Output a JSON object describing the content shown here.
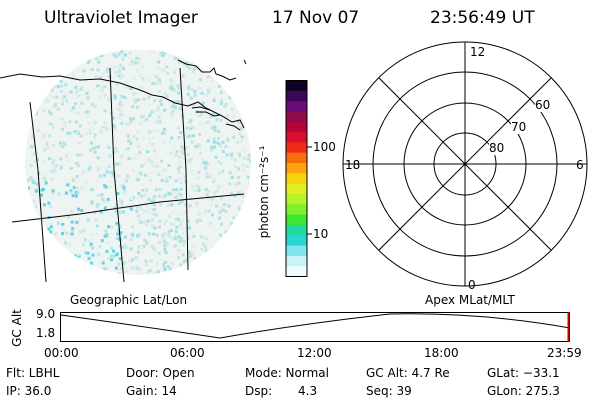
{
  "header": {
    "title": "Ultraviolet Imager",
    "date": "17 Nov 07",
    "time": "23:56:49 UT"
  },
  "colorbar": {
    "label": "photon cm⁻²s⁻¹",
    "ticks": [
      "100",
      "10"
    ],
    "colors": [
      "#0d0224",
      "#3b0858",
      "#6a0a78",
      "#8e0b4d",
      "#b0063a",
      "#d8102c",
      "#f02a18",
      "#f76e0a",
      "#fba40e",
      "#f5d40f",
      "#e3ec25",
      "#b8f32a",
      "#7fef2e",
      "#3fe536",
      "#22d8a2",
      "#27d6d4",
      "#7fe6ee",
      "#c8f3f8",
      "#eefbff"
    ]
  },
  "left_panel": {
    "caption": "Geographic Lat/Lon"
  },
  "right_panel": {
    "caption": "Apex MLat/MLT",
    "mlt_labels": [
      "12",
      "18",
      "6",
      "0"
    ],
    "mlat_labels": [
      "60",
      "70",
      "80"
    ]
  },
  "timeline": {
    "y_axis_label": "GC Alt",
    "y_ticks": [
      "9.0",
      "1.8"
    ],
    "x_ticks": [
      "00:00",
      "06:00",
      "12:00",
      "18:00",
      "23:59"
    ]
  },
  "footer": {
    "flt": "Flt: LBHL",
    "ip": "IP: 36.0",
    "door": "Door: Open",
    "gain": "Gain: 14",
    "mode": "Mode: Normal",
    "dsp_label": "Dsp:",
    "dsp_value": "4.3",
    "gc_alt": "GC Alt: 4.7 Re",
    "seq": "Seq: 39",
    "glat": "GLat: −33.1",
    "glon": "GLon: 275.3"
  }
}
